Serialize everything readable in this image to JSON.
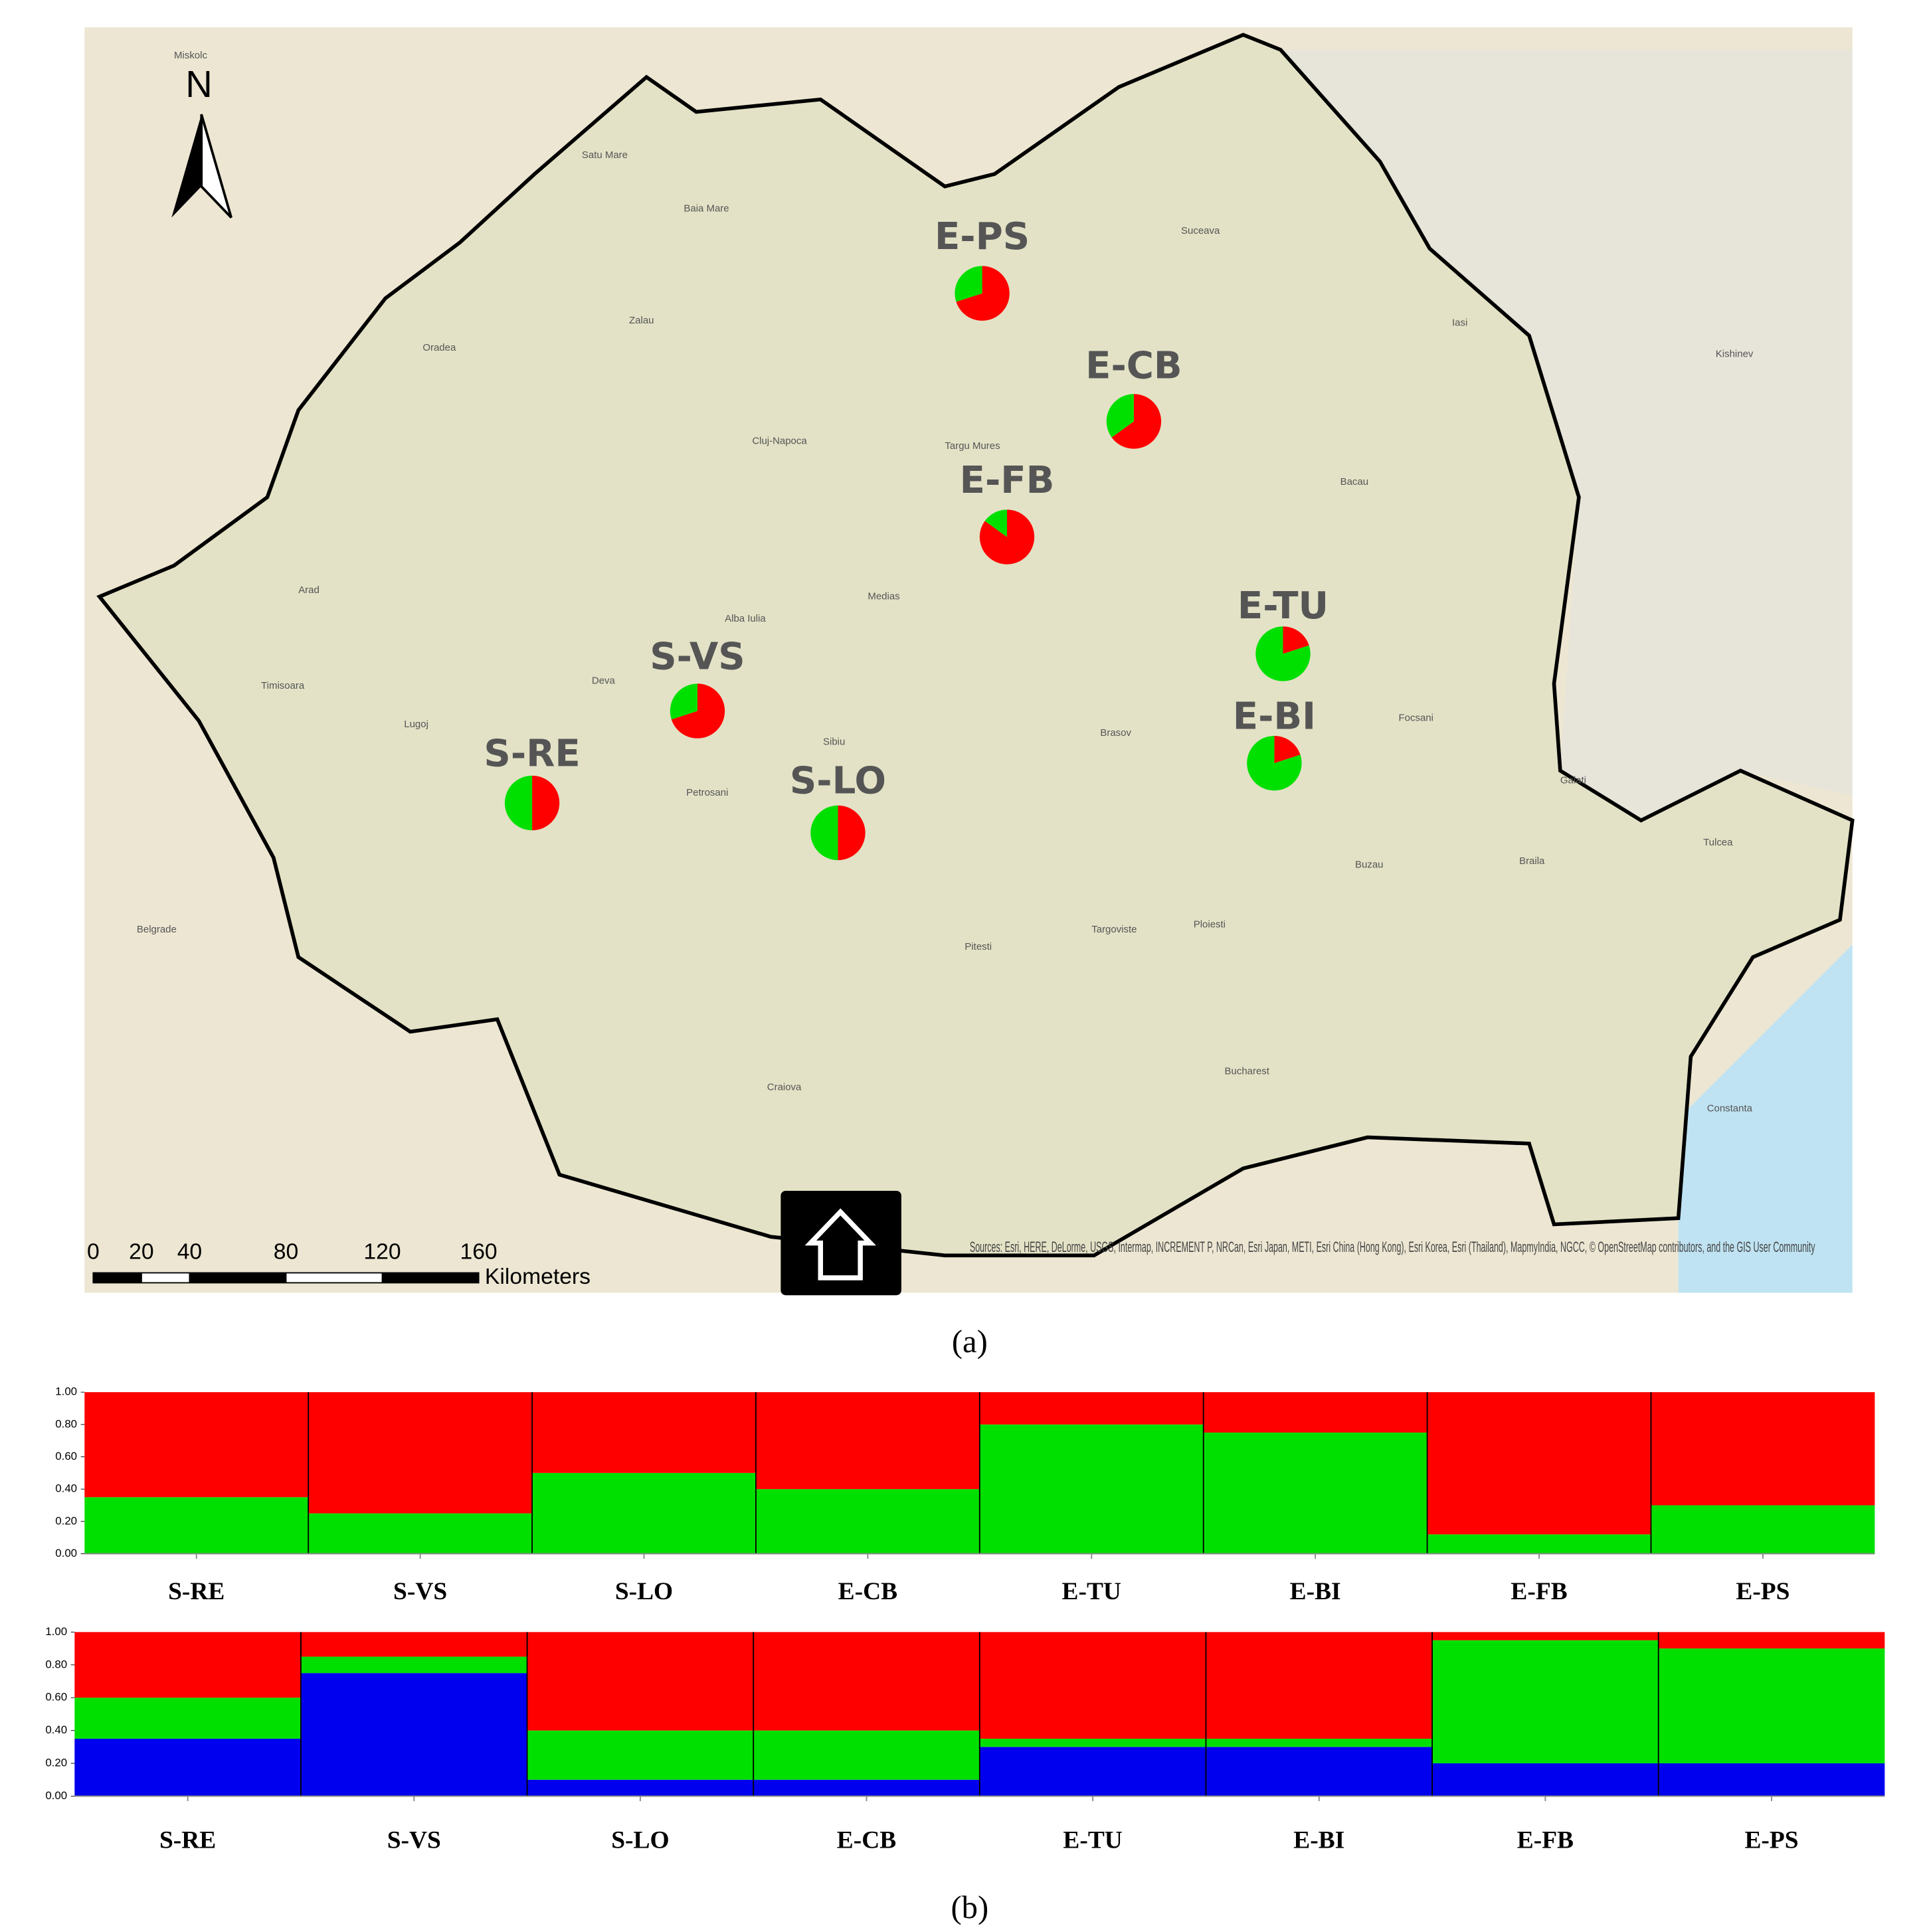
{
  "map": {
    "north": "N",
    "cities": [
      "Miskolc",
      "Satu Mare",
      "Baia Mare",
      "Oradea",
      "Zalau",
      "Cluj-Napoca",
      "Targu Mures",
      "Suceava",
      "Iasi",
      "Kishinev",
      "Bacau",
      "Arad",
      "Timisoara",
      "Deva",
      "Alba Iulia",
      "Medias",
      "Sibiu",
      "Brasov",
      "Lugoj",
      "Petrosani",
      "Focsani",
      "Galati",
      "Braila",
      "Tulcea",
      "Buzau",
      "Ploiesti",
      "Targoviste",
      "Pitesti",
      "Craiova",
      "Bucharest",
      "Constanta",
      "Belgrade"
    ],
    "pie_colors": [
      "#ff0000",
      "#00e000"
    ],
    "pies": [
      {
        "label": "E-PS",
        "values": [
          70,
          30
        ]
      },
      {
        "label": "E-CB",
        "values": [
          65,
          35
        ]
      },
      {
        "label": "E-FB",
        "values": [
          85,
          15
        ]
      },
      {
        "label": "E-TU",
        "values": [
          20,
          80
        ]
      },
      {
        "label": "E-BI",
        "values": [
          20,
          80
        ]
      },
      {
        "label": "S-VS",
        "values": [
          70,
          30
        ]
      },
      {
        "label": "S-RE",
        "values": [
          50,
          50
        ]
      },
      {
        "label": "S-LO",
        "values": [
          50,
          50
        ]
      }
    ],
    "scale_ticks": [
      0,
      20,
      40,
      80,
      120,
      160
    ],
    "scale_unit": "Kilometers",
    "sources": "Sources: Esri, HERE, DeLorme, USGS, Intermap, INCREMENT P, NRCan, Esri Japan, METI, Esri China (Hong Kong), Esri Korea, Esri (Thailand), MapmyIndia, NGCC, © OpenStreetMap contributors, and the GIS User Community"
  },
  "caption_a": "(a)",
  "structure": [
    {
      "type": "bar",
      "categories": [
        "S-RE",
        "S-VS",
        "S-LO",
        "E-CB",
        "E-TU",
        "E-BI",
        "E-FB",
        "E-PS"
      ],
      "series": [
        {
          "color": "#00e000",
          "values": [
            0.35,
            0.25,
            0.5,
            0.4,
            0.8,
            0.75,
            0.12,
            0.3
          ]
        },
        {
          "color": "#ff0000",
          "values": [
            0.65,
            0.75,
            0.5,
            0.6,
            0.2,
            0.25,
            0.88,
            0.7
          ]
        }
      ],
      "ylim": [
        0,
        1
      ],
      "yticks": [
        {
          "value": 0,
          "label": "0.00"
        },
        {
          "value": 0.2,
          "label": "0.20"
        },
        {
          "value": 0.4,
          "label": "0.40"
        },
        {
          "value": 0.6,
          "label": "0.60"
        },
        {
          "value": 0.8,
          "label": "0.80"
        },
        {
          "value": 1,
          "label": "1.00"
        }
      ]
    },
    {
      "type": "bar",
      "categories": [
        "S-RE",
        "S-VS",
        "S-LO",
        "E-CB",
        "E-TU",
        "E-BI",
        "E-FB",
        "E-PS"
      ],
      "series": [
        {
          "color": "#0000ee",
          "values": [
            0.35,
            0.75,
            0.1,
            0.1,
            0.3,
            0.3,
            0.2,
            0.2
          ]
        },
        {
          "color": "#00e000",
          "values": [
            0.25,
            0.1,
            0.3,
            0.3,
            0.05,
            0.05,
            0.75,
            0.7
          ]
        },
        {
          "color": "#ff0000",
          "values": [
            0.4,
            0.15,
            0.6,
            0.6,
            0.65,
            0.65,
            0.05,
            0.1
          ]
        }
      ],
      "ylim": [
        0,
        1
      ],
      "yticks": [
        {
          "value": 0,
          "label": "0.00"
        },
        {
          "value": 0.2,
          "label": "0.20"
        },
        {
          "value": 0.4,
          "label": "0.40"
        },
        {
          "value": 0.6,
          "label": "0.60"
        },
        {
          "value": 0.8,
          "label": "0.80"
        },
        {
          "value": 1,
          "label": "1.00"
        }
      ]
    }
  ],
  "caption_b": "(b)"
}
